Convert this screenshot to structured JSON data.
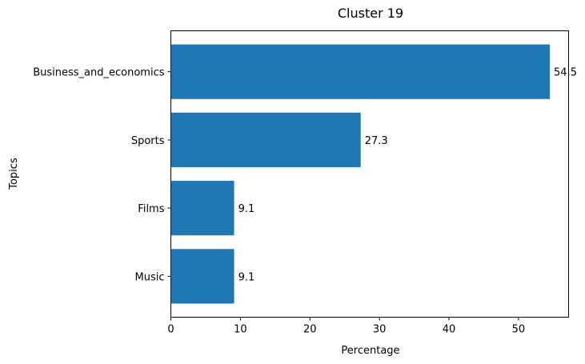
{
  "chart_data": {
    "type": "bar",
    "orientation": "horizontal",
    "title": "Cluster 19",
    "xlabel": "Percentage",
    "ylabel": "Topics",
    "categories": [
      "Business_and_economics",
      "Sports",
      "Films",
      "Music"
    ],
    "values": [
      54.5,
      27.3,
      9.1,
      9.1
    ],
    "value_labels": [
      "54.5",
      "27.3",
      "9.1",
      "9.1"
    ],
    "xlim": [
      0,
      57.2
    ],
    "xticks": [
      0,
      10,
      20,
      30,
      40,
      50
    ],
    "xtick_labels": [
      "0",
      "10",
      "20",
      "30",
      "40",
      "50"
    ],
    "grid": false,
    "bar_color": "#1f77b4"
  }
}
